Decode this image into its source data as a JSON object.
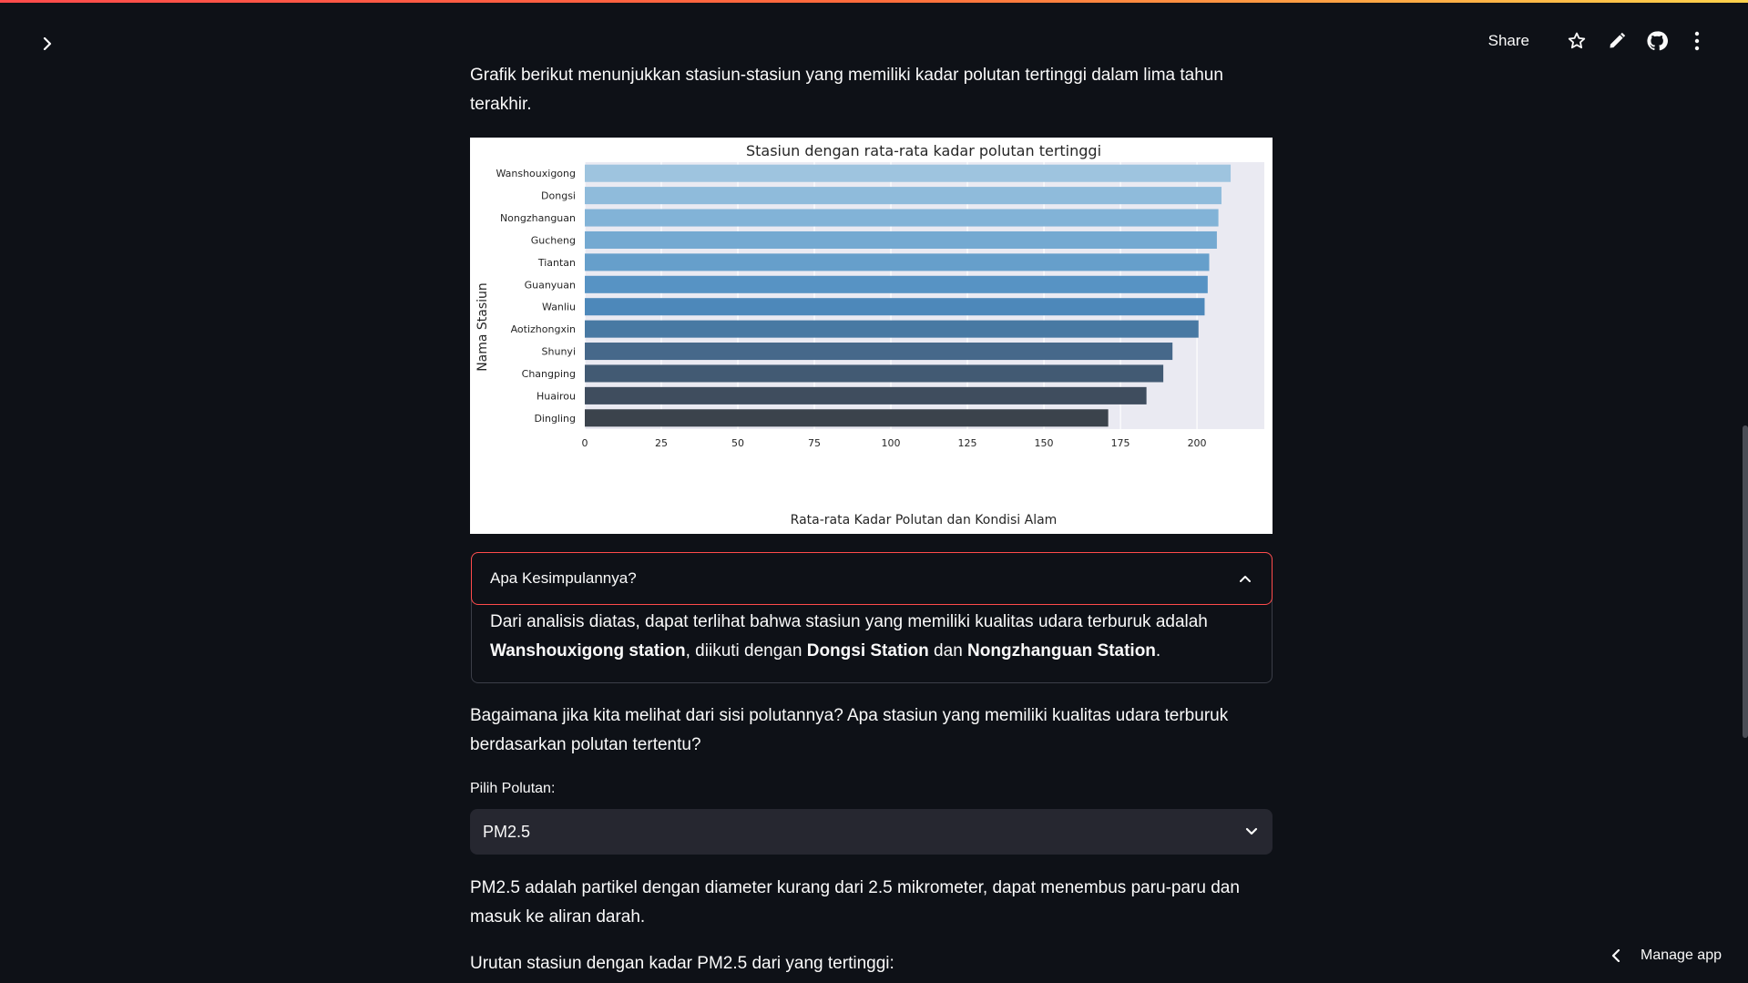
{
  "header": {
    "share_label": "Share",
    "icons": [
      "star-icon",
      "pencil-icon",
      "github-icon",
      "more-vertical-icon"
    ]
  },
  "intro_text": "Grafik berikut menunjukkan stasiun-stasiun yang memiliki kadar polutan tertinggi dalam lima tahun terakhir.",
  "chart_data": {
    "type": "bar",
    "orientation": "horizontal",
    "title": "Stasiun dengan rata-rata kadar polutan tertinggi",
    "xlabel": "Rata-rata Kadar Polutan dan Kondisi Alam",
    "ylabel": "Nama Stasiun",
    "xlim": [
      0,
      222
    ],
    "xticks": [
      0,
      25,
      50,
      75,
      100,
      125,
      150,
      175,
      200
    ],
    "grid": true,
    "categories": [
      "Wanshouxigong",
      "Dongsi",
      "Nongzhanguan",
      "Gucheng",
      "Tiantan",
      "Guanyuan",
      "Wanliu",
      "Aotizhongxin",
      "Shunyi",
      "Changping",
      "Huairou",
      "Dingling"
    ],
    "values": [
      211,
      208,
      207,
      206.5,
      204,
      203.5,
      202.5,
      200.5,
      192,
      189,
      183.5,
      171
    ],
    "colors": [
      "#9ec4df",
      "#8fbbdb",
      "#82b3d7",
      "#74a9d1",
      "#669fcb",
      "#5793c4",
      "#4d88ba",
      "#4879a3",
      "#46688a",
      "#425a73",
      "#3f4d5e",
      "#3b434c"
    ]
  },
  "expander": {
    "title": "Apa Kesimpulannya?",
    "body_prefix": "Dari analisis diatas, dapat terlihat bahwa stasiun yang memiliki kualitas udara terburuk adalah ",
    "bold1": "Wanshouxigong station",
    "mid1": ", diikuti dengan ",
    "bold2": "Dongsi Station",
    "mid2": " dan ",
    "bold3": "Nongzhanguan Station",
    "suffix": "."
  },
  "question_text": "Bagaimana jika kita melihat dari sisi polutannya? Apa stasiun yang memiliki kualitas udara terburuk berdasarkan polutan tertentu?",
  "select": {
    "label": "Pilih Polutan:",
    "value": "PM2.5"
  },
  "pm_desc": "PM2.5 adalah partikel dengan diameter kurang dari 2.5 mikrometer, dapat menembus paru-paru dan masuk ke aliran darah.",
  "order_text": "Urutan stasiun dengan kadar PM2.5 dari yang tertinggi:",
  "manage_app_label": "Manage app"
}
